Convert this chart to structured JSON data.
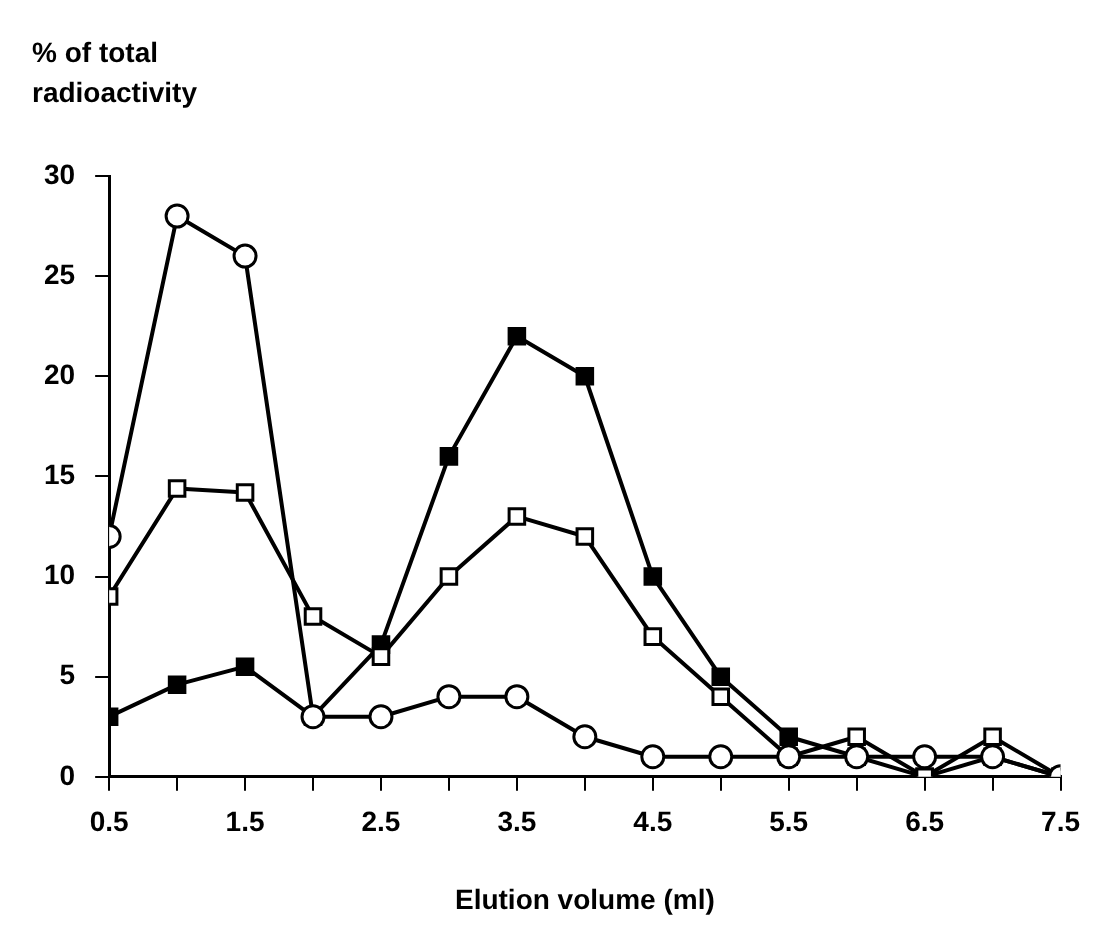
{
  "chart_data": {
    "type": "line",
    "xlabel": "Elution volume (ml)",
    "ylabel": "% of total radioactivity",
    "x": [
      0.5,
      1,
      1.5,
      2,
      2.5,
      3,
      3.5,
      4,
      4.5,
      5,
      5.5,
      6,
      6.5,
      7,
      7.5
    ],
    "series": [
      {
        "color": "#ffffff",
        "marker": "circle",
        "values": [
          12,
          28,
          26,
          3,
          3,
          4,
          4,
          2,
          1,
          1,
          1,
          1,
          1,
          1,
          0
        ]
      },
      {
        "color": "#ffffff",
        "marker": "square",
        "values": [
          9,
          14.4,
          14.2,
          8,
          6,
          10,
          13,
          12,
          7,
          4,
          1,
          2,
          0,
          2,
          0
        ]
      },
      {
        "color": "#000000",
        "marker": "square",
        "values": [
          3,
          4.6,
          5.5,
          3,
          6.6,
          16,
          22,
          20,
          10,
          5,
          2,
          1,
          0,
          1,
          0
        ]
      }
    ],
    "xlim": [
      0.5,
      7.5
    ],
    "xticks": [
      0.5,
      {
        "value": 1,
        "label": null
      },
      1.5,
      {
        "value": 2,
        "label": null
      },
      2.5,
      {
        "value": 3,
        "label": null
      },
      3.5,
      {
        "value": 4,
        "label": null
      },
      4.5,
      {
        "value": 5,
        "label": null
      },
      5.5,
      {
        "value": 6,
        "label": null
      },
      6.5,
      {
        "value": 7,
        "label": null
      },
      7.5
    ],
    "ylim": [
      0,
      30
    ],
    "yticks": [
      0,
      5,
      10,
      15,
      20,
      25,
      30
    ],
    "grid": false,
    "legend": false,
    "line_style": "solid"
  }
}
